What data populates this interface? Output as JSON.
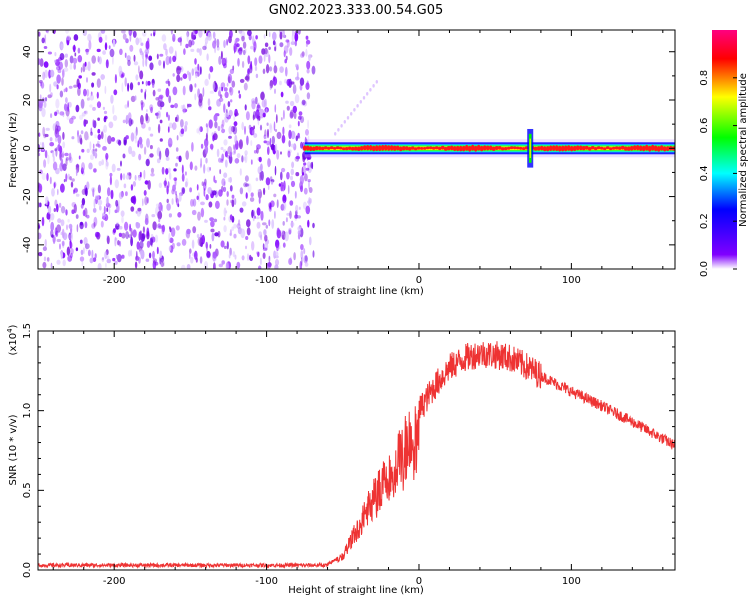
{
  "title": "GN02.2023.333.00.54.G05",
  "chart_data": [
    {
      "type": "heatmap",
      "xlabel": "Height of straight line (km)",
      "ylabel": "Frequency (Hz)",
      "xlim": [
        -250,
        168
      ],
      "ylim": [
        -50,
        49
      ],
      "x_ticks": [
        -200,
        -100,
        0,
        100
      ],
      "x_tick_labels": [
        "-200",
        "-100",
        "0",
        "100"
      ],
      "y_ticks": [
        -40,
        -20,
        0,
        20,
        40
      ],
      "y_tick_labels": [
        "-40",
        "-20",
        "0",
        "20",
        "40"
      ],
      "noise_region_x": [
        -250,
        -73
      ],
      "ridge_frequency": 0,
      "ridge_start_x": -75,
      "spike_x": 73,
      "colorbar": {
        "label": "Normalized spectral amplitude",
        "range": [
          0,
          1
        ],
        "ticks": [
          0.0,
          0.2,
          0.4,
          0.6,
          0.8
        ],
        "tick_labels": [
          "0.0",
          "0.2",
          "0.4",
          "0.6",
          "0.8"
        ],
        "colors": [
          "#ffffff",
          "#8000ff",
          "#0000ff",
          "#00ffff",
          "#00ff00",
          "#ffff00",
          "#ff0000",
          "#ff0080"
        ]
      }
    },
    {
      "type": "line",
      "xlabel": "Height of straight line (km)",
      "ylabel": "SNR (10 * v/v)",
      "y_scale_label": "(x10",
      "y_scale_exp": "4",
      "y_scale_close": ")",
      "xlim": [
        -250,
        168
      ],
      "ylim": [
        0,
        1.5
      ],
      "x_ticks": [
        -200,
        -100,
        0,
        100
      ],
      "x_tick_labels": [
        "-200",
        "-100",
        "0",
        "100"
      ],
      "y_ticks": [
        0,
        0.5,
        1.0,
        1.5
      ],
      "y_tick_labels": [
        "0.0",
        "0.5",
        "1.0",
        "1.5"
      ],
      "series_color": "#ee3333",
      "envelope_x": [
        -250,
        -60,
        -50,
        -40,
        -30,
        -20,
        -10,
        0,
        10,
        20,
        30,
        40,
        50,
        60,
        70,
        80,
        100,
        120,
        140,
        168
      ],
      "envelope_y": [
        0.03,
        0.03,
        0.1,
        0.3,
        0.5,
        0.7,
        0.85,
        1.0,
        1.15,
        1.27,
        1.33,
        1.36,
        1.35,
        1.33,
        1.28,
        1.22,
        1.12,
        1.03,
        0.93,
        0.78
      ]
    }
  ]
}
